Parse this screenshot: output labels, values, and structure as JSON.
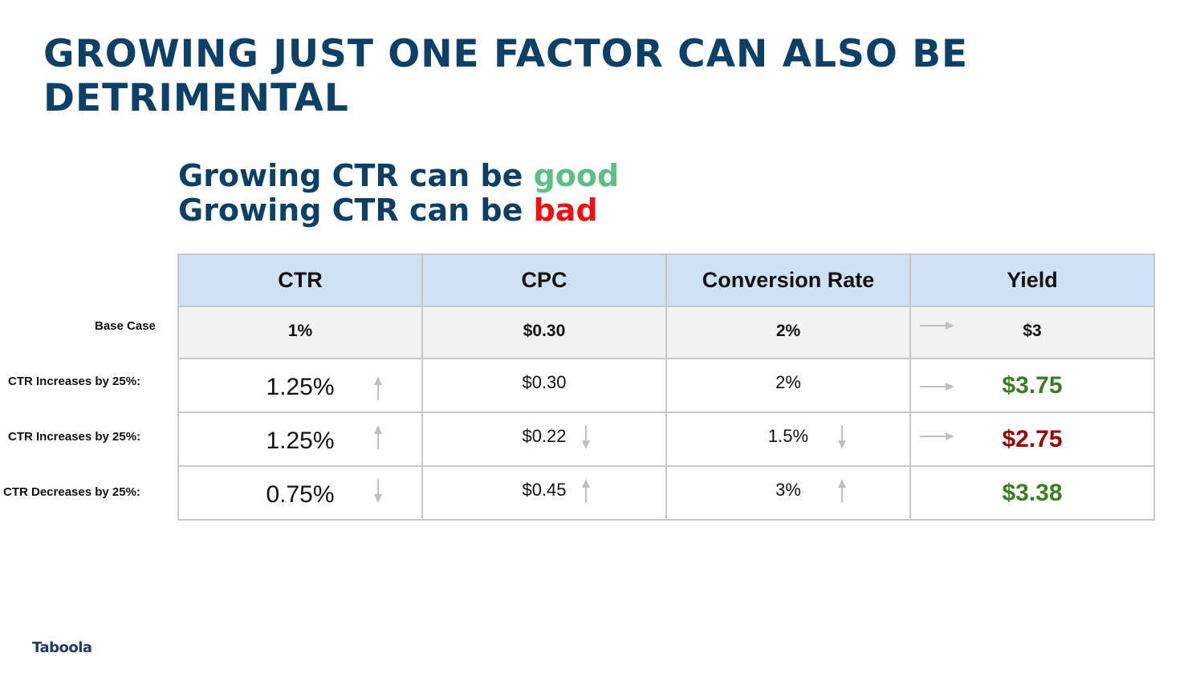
{
  "slide": {
    "title": "GROWING JUST ONE FACTOR CAN ALSO BE DETRIMENTAL",
    "subtitle": {
      "line1_prefix": "Growing CTR can be ",
      "line1_highlight": "good",
      "line2_prefix": "Growing CTR can be ",
      "line2_highlight": "bad"
    },
    "logo": "Taboola"
  },
  "table": {
    "headers": [
      "CTR",
      "CPC",
      "Conversion Rate",
      "Yield"
    ],
    "rows": [
      {
        "label": "Base Case",
        "ctr": "1%",
        "cpc": "$0.30",
        "conversion": "2%",
        "yield": "$3"
      },
      {
        "label": "CTR Increases by 25%:",
        "ctr": "1.25%",
        "cpc": "$0.30",
        "conversion": "2%",
        "yield": "$3.75"
      },
      {
        "label": "CTR Increases by 25%:",
        "ctr": "1.25%",
        "cpc": "$0.22",
        "conversion": "1.5%",
        "yield": "$2.75"
      },
      {
        "label": "CTR Decreases by 25%:",
        "ctr": "0.75%",
        "cpc": "$0.45",
        "conversion": "3%",
        "yield": "$3.38"
      }
    ]
  },
  "icons": {
    "up": "arrow-up-icon",
    "down": "arrow-down-icon",
    "right": "arrow-right-icon"
  },
  "colors": {
    "title": "#0d4066",
    "good": "#5bbf86",
    "bad": "#ee1111",
    "header_bg": "#cfe1f3",
    "yield_positive": "#3b7d23",
    "yield_negative": "#990000",
    "arrow": "#c0c0c0"
  }
}
